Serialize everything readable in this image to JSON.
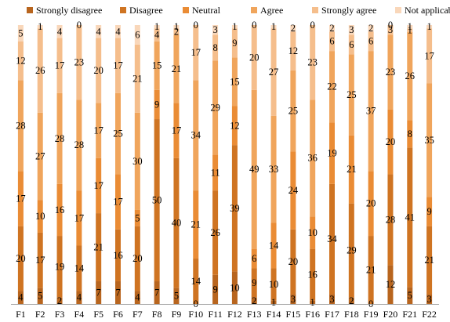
{
  "chart_data": {
    "type": "bar",
    "stacked": true,
    "orientation": "vertical",
    "percent_stacked": true,
    "legend_position": "top",
    "grid": false,
    "title": "",
    "xlabel": "",
    "ylabel": "",
    "categories": [
      "F1",
      "F2",
      "F3",
      "F4",
      "F5",
      "F6",
      "F7",
      "F8",
      "F9",
      "F10",
      "F11",
      "F12",
      "F13",
      "F14",
      "F15",
      "F16",
      "F17",
      "F18",
      "F19",
      "F20",
      "F21",
      "F22"
    ],
    "series": [
      {
        "name": "Strongly disagree",
        "color": "#B8651E",
        "values": [
          4,
          5,
          2,
          4,
          7,
          7,
          4,
          7,
          5,
          0,
          9,
          10,
          2,
          1,
          3,
          1,
          3,
          2,
          0,
          12,
          5,
          3
        ]
      },
      {
        "name": "Disagree",
        "color": "#CF7422",
        "values": [
          20,
          17,
          19,
          14,
          21,
          16,
          20,
          50,
          40,
          14,
          26,
          39,
          9,
          10,
          20,
          16,
          34,
          29,
          21,
          28,
          41,
          21
        ]
      },
      {
        "name": "Neutral",
        "color": "#EA8C35",
        "values": [
          17,
          10,
          16,
          17,
          17,
          17,
          5,
          9,
          17,
          21,
          11,
          12,
          6,
          14,
          24,
          10,
          19,
          21,
          20,
          20,
          8,
          9
        ]
      },
      {
        "name": "Agree",
        "color": "#F0A55C",
        "values": [
          28,
          27,
          28,
          28,
          17,
          25,
          30,
          15,
          21,
          34,
          29,
          15,
          49,
          33,
          25,
          36,
          22,
          25,
          37,
          23,
          26,
          35
        ]
      },
      {
        "name": "Strongly agree",
        "color": "#F5BE8C",
        "values": [
          12,
          26,
          17,
          23,
          20,
          17,
          21,
          4,
          2,
          17,
          8,
          9,
          20,
          27,
          12,
          23,
          6,
          6,
          6,
          3,
          1,
          17
        ]
      },
      {
        "name": "Not applicable",
        "color": "#F9D7BA",
        "values": [
          5,
          1,
          4,
          0,
          4,
          4,
          6,
          1,
          1,
          0,
          3,
          1,
          0,
          1,
          2,
          0,
          2,
          3,
          2,
          0,
          1,
          1
        ]
      }
    ]
  }
}
